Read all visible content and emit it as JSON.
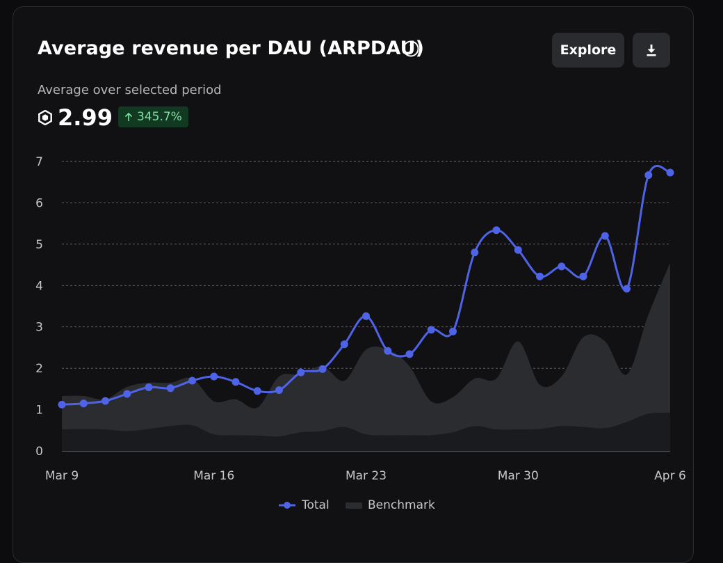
{
  "header": {
    "title": "Average revenue per DAU (ARPDAU)",
    "explore_label": "Explore",
    "info_icon": "info-icon",
    "download_icon": "download-icon"
  },
  "summary": {
    "subtitle": "Average over selected period",
    "currency_icon": "robux-icon",
    "value": "2.99",
    "delta": "345.7%",
    "delta_direction": "up",
    "delta_color": "#7fe3a0"
  },
  "legend": {
    "total_label": "Total",
    "benchmark_label": "Benchmark"
  },
  "colors": {
    "total": "#4f63e6",
    "benchmark": "#2b2c30",
    "benchmark_lower": "#1a1b1e",
    "grid": "#8a8b8f"
  },
  "chart_data": {
    "type": "line",
    "title": "Average revenue per DAU (ARPDAU)",
    "x_tick_labels": [
      "Mar 9",
      "Mar 16",
      "Mar 23",
      "Mar 30",
      "Apr 6"
    ],
    "x_tick_dates": [
      "2024-03-09",
      "2024-03-16",
      "2024-03-23",
      "2024-03-30",
      "2024-04-06"
    ],
    "y_ticks": [
      0,
      1,
      2,
      3,
      4,
      5,
      6,
      7
    ],
    "ylim": [
      0,
      7
    ],
    "grid": true,
    "legend_position": "bottom-center",
    "x": [
      "2024-03-09",
      "2024-03-10",
      "2024-03-11",
      "2024-03-12",
      "2024-03-13",
      "2024-03-14",
      "2024-03-15",
      "2024-03-16",
      "2024-03-17",
      "2024-03-18",
      "2024-03-19",
      "2024-03-20",
      "2024-03-21",
      "2024-03-22",
      "2024-03-23",
      "2024-03-24",
      "2024-03-25",
      "2024-03-26",
      "2024-03-27",
      "2024-03-28",
      "2024-03-29",
      "2024-03-30",
      "2024-03-31",
      "2024-04-01",
      "2024-04-02",
      "2024-04-03",
      "2024-04-04",
      "2024-04-05",
      "2024-04-06"
    ],
    "series": [
      {
        "name": "Total",
        "type": "line",
        "values": [
          1.12,
          1.15,
          1.21,
          1.38,
          1.54,
          1.52,
          1.7,
          1.8,
          1.67,
          1.45,
          1.47,
          1.9,
          1.98,
          2.58,
          3.26,
          2.42,
          2.34,
          2.93,
          2.89,
          4.8,
          5.34,
          4.86,
          4.22,
          4.46,
          4.22,
          5.2,
          3.92,
          6.67,
          6.73
        ]
      },
      {
        "name": "Benchmark",
        "type": "band",
        "upper": [
          1.33,
          1.33,
          1.25,
          1.55,
          1.65,
          1.65,
          1.75,
          1.2,
          1.25,
          1.05,
          1.8,
          1.85,
          2.05,
          1.7,
          2.45,
          2.45,
          2.05,
          1.2,
          1.3,
          1.75,
          1.75,
          2.65,
          1.6,
          1.8,
          2.75,
          2.65,
          1.85,
          3.3,
          4.55
        ],
        "lower": [
          0.52,
          0.53,
          0.52,
          0.48,
          0.53,
          0.6,
          0.62,
          0.4,
          0.38,
          0.37,
          0.35,
          0.45,
          0.48,
          0.58,
          0.4,
          0.38,
          0.38,
          0.38,
          0.45,
          0.6,
          0.52,
          0.52,
          0.53,
          0.6,
          0.58,
          0.55,
          0.7,
          0.9,
          0.92
        ]
      }
    ]
  }
}
